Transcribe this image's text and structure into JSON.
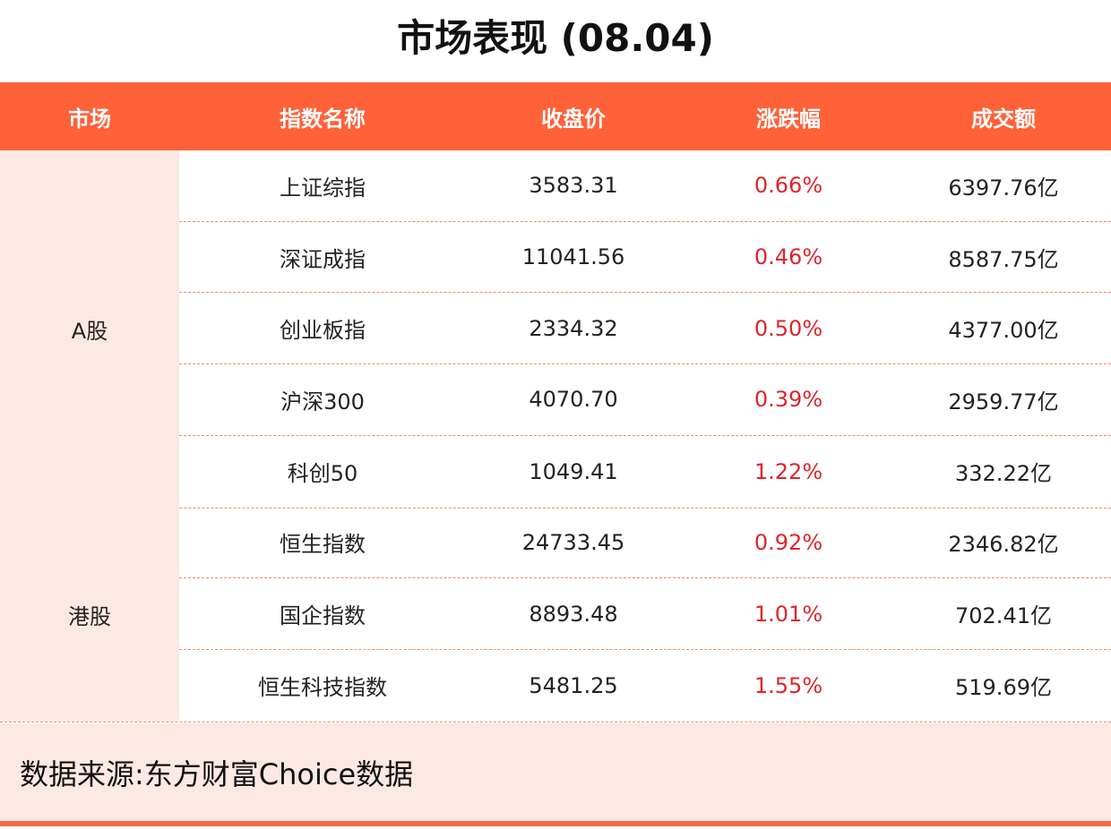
{
  "title": "市场表现 (08.04)",
  "columns": [
    "市场",
    "指数名称",
    "收盘价",
    "涨跌幅",
    "成交额"
  ],
  "groups": [
    {
      "market": "A股",
      "rows": [
        {
          "name": "上证综指",
          "close": "3583.31",
          "change": "0.66%",
          "turnover": "6397.76亿"
        },
        {
          "name": "深证成指",
          "close": "11041.56",
          "change": "0.46%",
          "turnover": "8587.75亿"
        },
        {
          "name": "创业板指",
          "close": "2334.32",
          "change": "0.50%",
          "turnover": "4377.00亿"
        },
        {
          "name": "沪深300",
          "close": "4070.70",
          "change": "0.39%",
          "turnover": "2959.77亿"
        },
        {
          "name": "科创50",
          "close": "1049.41",
          "change": "1.22%",
          "turnover": "332.22亿"
        }
      ]
    },
    {
      "market": "港股",
      "rows": [
        {
          "name": "恒生指数",
          "close": "24733.45",
          "change": "0.92%",
          "turnover": "2346.82亿"
        },
        {
          "name": "国企指数",
          "close": "8893.48",
          "change": "1.01%",
          "turnover": "702.41亿"
        },
        {
          "name": "恒生科技指数",
          "close": "5481.25",
          "change": "1.55%",
          "turnover": "519.69亿"
        }
      ]
    }
  ],
  "footer": "数据来源:东方财富Choice数据",
  "colors": {
    "header": "#ff6139",
    "market_bg": "#fde9e3",
    "positive": "#e0242b"
  }
}
